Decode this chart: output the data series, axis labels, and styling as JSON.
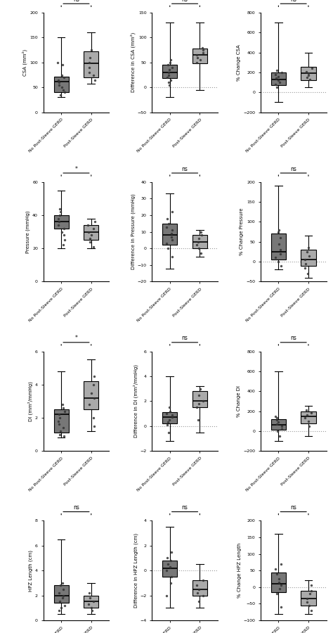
{
  "rows": [
    {
      "panels": [
        {
          "ylabel": "CSA (mm²)",
          "ylim": [
            0,
            200
          ],
          "yticks": [
            0,
            50,
            100,
            150,
            200
          ],
          "hline": null,
          "sig": "ns",
          "boxes": [
            {
              "color": "#777777",
              "whislo": 30,
              "q1": 40,
              "med": 62,
              "q3": 72,
              "whishi": 150,
              "points": [
                35,
                40,
                45,
                50,
                55,
                60,
                65,
                70,
                75,
                95,
                100
              ]
            },
            {
              "color": "#aaaaaa",
              "whislo": 58,
              "q1": 70,
              "med": 98,
              "q3": 122,
              "whishi": 160,
              "points": [
                65,
                75,
                80,
                90,
                100,
                110,
                125
              ]
            }
          ]
        },
        {
          "ylabel": "Difference in CSA (mm²)",
          "ylim": [
            -50,
            150
          ],
          "yticks": [
            -50,
            0,
            50,
            100,
            150
          ],
          "hline": 0,
          "sig": "ns",
          "boxes": [
            {
              "color": "#777777",
              "whislo": -20,
              "q1": 18,
              "med": 30,
              "q3": 45,
              "whishi": 130,
              "points": [
                5,
                10,
                15,
                20,
                25,
                30,
                35,
                40,
                45,
                50,
                55
              ]
            },
            {
              "color": "#aaaaaa",
              "whislo": -5,
              "q1": 48,
              "med": 65,
              "q3": 78,
              "whishi": 130,
              "points": [
                50,
                55,
                60,
                65,
                70,
                75,
                80
              ]
            }
          ]
        },
        {
          "ylabel": "% Change CSA",
          "ylim": [
            -200,
            800
          ],
          "yticks": [
            -200,
            0,
            200,
            400,
            600,
            800
          ],
          "hline": 0,
          "sig": "ns",
          "boxes": [
            {
              "color": "#777777",
              "whislo": -100,
              "q1": 75,
              "med": 130,
              "q3": 200,
              "whishi": 700,
              "points": [
                50,
                80,
                100,
                120,
                140,
                160,
                180,
                200,
                220
              ]
            },
            {
              "color": "#aaaaaa",
              "whislo": 50,
              "q1": 125,
              "med": 190,
              "q3": 255,
              "whishi": 400,
              "points": [
                130,
                150,
                170,
                190,
                210,
                240
              ]
            }
          ]
        }
      ]
    },
    {
      "panels": [
        {
          "ylabel": "Pressure (mmHg)",
          "ylim": [
            0,
            60
          ],
          "yticks": [
            0,
            20,
            40,
            60
          ],
          "hline": null,
          "sig": "*",
          "boxes": [
            {
              "color": "#777777",
              "whislo": 20,
              "q1": 32,
              "med": 36,
              "q3": 40,
              "whishi": 55,
              "points": [
                22,
                25,
                28,
                30,
                32,
                34,
                36,
                38,
                40,
                42,
                44
              ]
            },
            {
              "color": "#aaaaaa",
              "whislo": 20,
              "q1": 25,
              "med": 30,
              "q3": 34,
              "whishi": 38,
              "points": [
                21,
                24,
                26,
                28,
                30,
                32,
                34,
                36
              ]
            }
          ]
        },
        {
          "ylabel": "Difference in Pressure (mmHg)",
          "ylim": [
            -20,
            40
          ],
          "yticks": [
            -20,
            -10,
            0,
            10,
            20,
            30,
            40
          ],
          "hline": 0,
          "sig": "ns",
          "boxes": [
            {
              "color": "#777777",
              "whislo": -12,
              "q1": 2,
              "med": 8,
              "q3": 15,
              "whishi": 33,
              "points": [
                -5,
                0,
                3,
                5,
                7,
                9,
                11,
                13,
                15,
                18,
                22
              ]
            },
            {
              "color": "#aaaaaa",
              "whislo": -5,
              "q1": 0,
              "med": 4,
              "q3": 8,
              "whishi": 11,
              "points": [
                -3,
                0,
                2,
                4,
                6,
                8,
                10
              ]
            }
          ]
        },
        {
          "ylabel": "% Change Pressure",
          "ylim": [
            -50,
            200
          ],
          "yticks": [
            -50,
            0,
            50,
            100,
            150,
            200
          ],
          "hline": 0,
          "sig": "ns",
          "boxes": [
            {
              "color": "#777777",
              "whislo": -20,
              "q1": 5,
              "med": 25,
              "q3": 70,
              "whishi": 190,
              "points": [
                -10,
                0,
                10,
                20,
                30,
                45,
                60,
                75,
                80
              ]
            },
            {
              "color": "#aaaaaa",
              "whislo": -40,
              "q1": -10,
              "med": 5,
              "q3": 30,
              "whishi": 65,
              "points": [
                -30,
                -15,
                -5,
                5,
                15,
                25,
                35
              ]
            }
          ]
        }
      ]
    },
    {
      "panels": [
        {
          "ylabel": "DI (mm²/mmHg)",
          "ylim": [
            0,
            6
          ],
          "yticks": [
            0,
            2,
            4,
            6
          ],
          "hline": null,
          "sig": "*",
          "boxes": [
            {
              "color": "#777777",
              "whislo": 0.8,
              "q1": 1.1,
              "med": 2.2,
              "q3": 2.5,
              "whishi": 4.8,
              "points": [
                0.9,
                1.0,
                1.2,
                1.4,
                1.6,
                1.8,
                2.0,
                2.2,
                2.4,
                2.6,
                2.8
              ]
            },
            {
              "color": "#aaaaaa",
              "whislo": 1.2,
              "q1": 2.5,
              "med": 3.2,
              "q3": 4.2,
              "whishi": 5.5,
              "points": [
                1.5,
                2.0,
                2.8,
                3.2,
                3.5,
                4.0,
                4.5
              ]
            }
          ]
        },
        {
          "ylabel": "Difference in DI (mm²/mmHg)",
          "ylim": [
            -2,
            6
          ],
          "yticks": [
            -2,
            0,
            2,
            4,
            6
          ],
          "hline": 0,
          "sig": "ns",
          "boxes": [
            {
              "color": "#777777",
              "whislo": -1.2,
              "q1": 0.2,
              "med": 0.7,
              "q3": 1.1,
              "whishi": 4.0,
              "points": [
                -0.5,
                0.1,
                0.3,
                0.5,
                0.7,
                0.9,
                1.0,
                1.2,
                1.5
              ]
            },
            {
              "color": "#aaaaaa",
              "whislo": -0.5,
              "q1": 1.5,
              "med": 2.0,
              "q3": 2.8,
              "whishi": 3.2,
              "points": [
                0.5,
                1.5,
                1.8,
                2.0,
                2.5,
                3.0
              ]
            }
          ]
        },
        {
          "ylabel": "% Change DI",
          "ylim": [
            -200,
            800
          ],
          "yticks": [
            -200,
            0,
            200,
            400,
            600,
            800
          ],
          "hline": 0,
          "sig": "ns",
          "boxes": [
            {
              "color": "#777777",
              "whislo": -100,
              "q1": 10,
              "med": 60,
              "q3": 120,
              "whishi": 600,
              "points": [
                -50,
                0,
                20,
                50,
                70,
                90,
                110,
                130,
                150
              ]
            },
            {
              "color": "#aaaaaa",
              "whislo": -50,
              "q1": 80,
              "med": 150,
              "q3": 200,
              "whishi": 250,
              "points": [
                50,
                100,
                130,
                160,
                180,
                210
              ]
            }
          ]
        }
      ]
    },
    {
      "panels": [
        {
          "ylabel": "HPZ Length (cm)",
          "ylim": [
            0,
            8
          ],
          "yticks": [
            0,
            2,
            4,
            6,
            8
          ],
          "hline": null,
          "sig": "ns",
          "boxes": [
            {
              "color": "#777777",
              "whislo": 0.5,
              "q1": 1.4,
              "med": 2.0,
              "q3": 2.8,
              "whishi": 6.5,
              "points": [
                0.8,
                1.0,
                1.2,
                1.5,
                1.8,
                2.0,
                2.2,
                2.5,
                2.8,
                3.0
              ]
            },
            {
              "color": "#aaaaaa",
              "whislo": 0.5,
              "q1": 1.0,
              "med": 1.5,
              "q3": 2.0,
              "whishi": 3.0,
              "points": [
                0.8,
                1.0,
                1.3,
                1.5,
                1.8,
                2.2
              ]
            }
          ]
        },
        {
          "ylabel": "Difference in HPZ Length (cm)",
          "ylim": [
            -4,
            4
          ],
          "yticks": [
            -4,
            -2,
            0,
            2,
            4
          ],
          "hline": 0,
          "sig": "ns",
          "boxes": [
            {
              "color": "#777777",
              "whislo": -3.0,
              "q1": -0.5,
              "med": 0.2,
              "q3": 0.8,
              "whishi": 3.5,
              "points": [
                -2.0,
                -1.0,
                -0.5,
                0.0,
                0.3,
                0.5,
                0.8,
                1.0,
                1.5
              ]
            },
            {
              "color": "#aaaaaa",
              "whislo": -3.0,
              "q1": -2.0,
              "med": -1.5,
              "q3": -0.8,
              "whishi": 0.5,
              "points": [
                -2.5,
                -2.0,
                -1.8,
                -1.5,
                -1.2,
                -0.8
              ]
            }
          ]
        },
        {
          "ylabel": "% Change HPZ Length",
          "ylim": [
            -100,
            200
          ],
          "yticks": [
            -100,
            -50,
            0,
            50,
            100,
            150,
            200
          ],
          "hline": 0,
          "sig": "ns",
          "boxes": [
            {
              "color": "#777777",
              "whislo": -80,
              "q1": -15,
              "med": 10,
              "q3": 45,
              "whishi": 160,
              "points": [
                -60,
                -20,
                -5,
                5,
                15,
                25,
                40,
                55,
                70
              ]
            },
            {
              "color": "#aaaaaa",
              "whislo": -80,
              "q1": -55,
              "med": -35,
              "q3": -10,
              "whishi": 20,
              "points": [
                -70,
                -55,
                -45,
                -35,
                -20,
                -10,
                5
              ]
            }
          ]
        }
      ]
    }
  ],
  "dark_color": "#777777",
  "light_color": "#aaaaaa",
  "x_labels": [
    "No Post-Sleeve GERD",
    "Post-Sleeve GERD"
  ]
}
